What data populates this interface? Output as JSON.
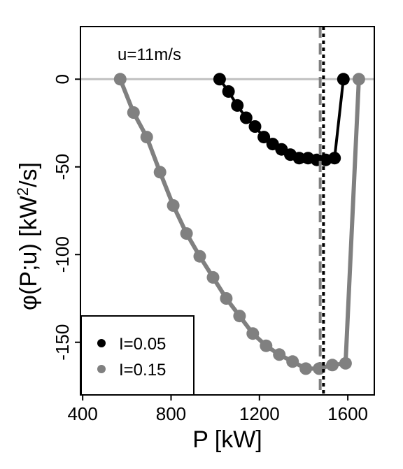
{
  "chart_data": {
    "type": "line",
    "annotation": "u=11m/s",
    "xlabel": "P [kW]",
    "ylabel_main": "φ(P;u) [kW",
    "ylabel_sup": "2",
    "ylabel_tail": "/s]",
    "xlim": [
      390,
      1720
    ],
    "ylim": [
      -180,
      30
    ],
    "x_ticks": [
      400,
      800,
      1200,
      1600
    ],
    "y_ticks": [
      0,
      -50,
      -100,
      -150
    ],
    "x_tick_labels": [
      "400",
      "800",
      "1200",
      "1600"
    ],
    "y_tick_labels": [
      "0",
      "-50",
      "-100",
      "-150"
    ],
    "reference_lines": {
      "horizontal_y": 0,
      "vertical_dashed_x": 1475,
      "vertical_dotted_x": 1490
    },
    "grid": false,
    "legend_position": "bottom-left",
    "series": [
      {
        "name": "I=0.05",
        "color": "#000000",
        "x": [
          1020,
          1060,
          1100,
          1140,
          1180,
          1220,
          1260,
          1300,
          1340,
          1380,
          1420,
          1460,
          1500,
          1540,
          1580
        ],
        "y": [
          0,
          -7,
          -15,
          -22,
          -27,
          -33,
          -37,
          -40,
          -43,
          -45,
          -45,
          -46,
          -46,
          -45,
          0
        ]
      },
      {
        "name": "I=0.15",
        "color": "#808080",
        "x": [
          570,
          630,
          690,
          750,
          810,
          870,
          930,
          990,
          1050,
          1110,
          1170,
          1230,
          1290,
          1350,
          1410,
          1470,
          1530,
          1590,
          1650
        ],
        "y": [
          0,
          -19,
          -33,
          -53,
          -72,
          -88,
          -101,
          -113,
          -125,
          -135,
          -145,
          -152,
          -157,
          -161,
          -165,
          -165,
          -163,
          -162,
          0
        ]
      }
    ]
  }
}
